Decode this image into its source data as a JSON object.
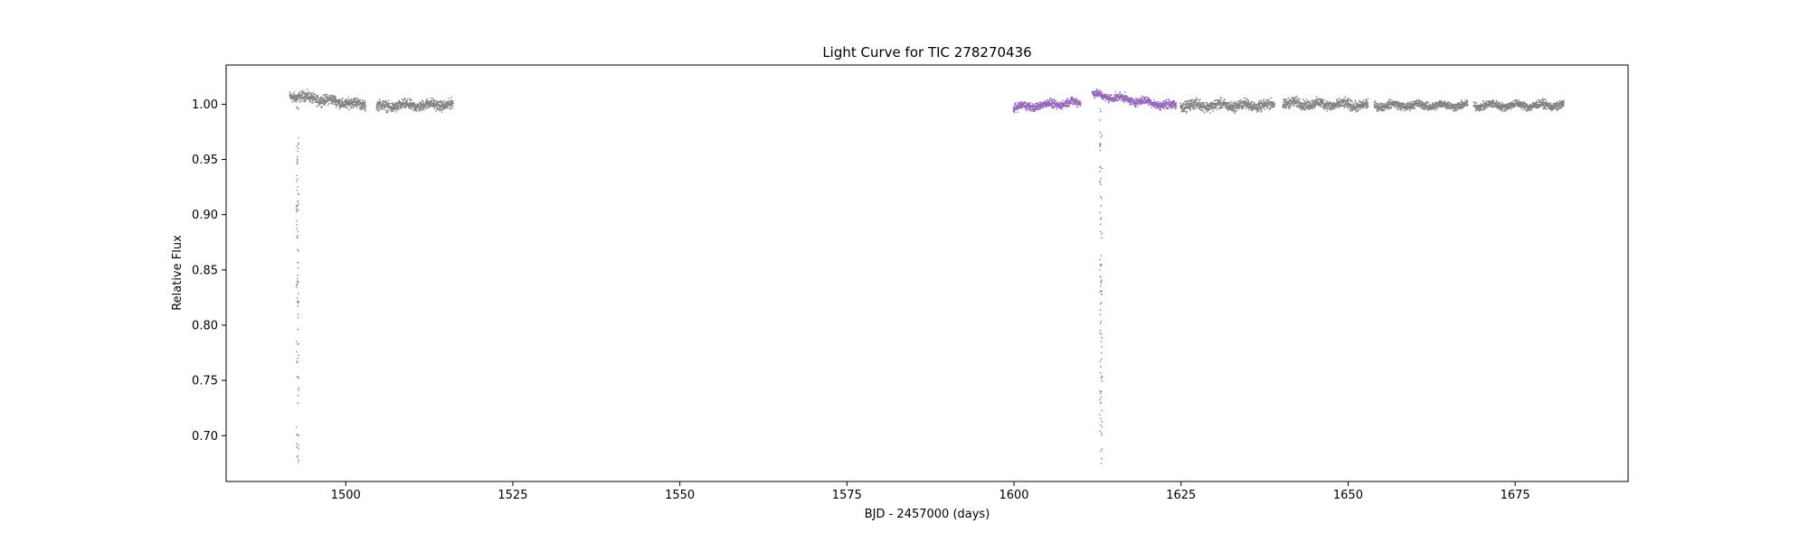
{
  "chart_data": {
    "type": "scatter",
    "title": "Light Curve for TIC 278270436",
    "xlabel": "BJD - 2457000 (days)",
    "ylabel": "Relative Flux",
    "xlim": [
      1482.1,
      1691.9
    ],
    "ylim": [
      0.6585,
      1.0355
    ],
    "xticks": [
      1500,
      1525,
      1550,
      1575,
      1600,
      1625,
      1650,
      1675
    ],
    "xtick_labels": [
      "1500",
      "1525",
      "1550",
      "1575",
      "1600",
      "1625",
      "1650",
      "1675"
    ],
    "yticks": [
      0.7,
      0.75,
      0.8,
      0.85,
      0.9,
      0.95,
      1.0
    ],
    "ytick_labels": [
      "0.70",
      "0.75",
      "0.80",
      "0.85",
      "0.90",
      "0.95",
      "1.00"
    ],
    "grid": false,
    "series": [
      {
        "color": "#808080",
        "segments": [
          {
            "x": [
              1491.6,
              1503.0
            ],
            "y_start": 1.008,
            "y_end": 0.999,
            "spread": 0.005
          },
          {
            "x": [
              1504.6,
              1516.1
            ],
            "y_start": 0.998,
            "y_end": 1.0,
            "spread": 0.005
          },
          {
            "x": [
              1624.9,
              1639.0
            ],
            "y_start": 0.999,
            "y_end": 0.999,
            "spread": 0.005
          },
          {
            "x": [
              1640.2,
              1653.0
            ],
            "y_start": 1.001,
            "y_end": 0.999,
            "spread": 0.005
          },
          {
            "x": [
              1653.9,
              1667.9
            ],
            "y_start": 0.999,
            "y_end": 0.999,
            "spread": 0.004
          },
          {
            "x": [
              1668.8,
              1682.3
            ],
            "y_start": 0.999,
            "y_end": 0.999,
            "spread": 0.004
          }
        ],
        "dips": [
          {
            "x": 1492.8,
            "y_min": 0.676
          }
        ]
      },
      {
        "color": "#9467bd",
        "segments": [
          {
            "x": [
              1599.9,
              1610.0
            ],
            "y_start": 0.997,
            "y_end": 1.002,
            "spread": 0.004
          },
          {
            "x": [
              1611.7,
              1624.3
            ],
            "y_start": 1.009,
            "y_end": 0.998,
            "spread": 0.004
          }
        ],
        "dips": [
          {
            "x": 1613.0,
            "y_min": 0.67
          }
        ]
      }
    ]
  }
}
